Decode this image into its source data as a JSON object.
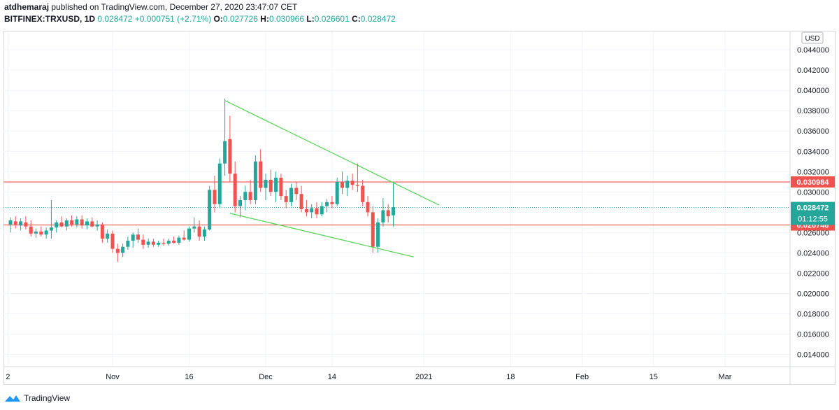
{
  "header": {
    "user": "atdhemaraj",
    "published_text": "published on TradingView.com, December 27, 2020 23:47:07 CET",
    "symbol": "BITFINEX:TRXUSD, 1D",
    "price": "0.028472",
    "change": "+0.000751 (+2.71%)",
    "o_label": "O:",
    "o_value": "0.027726",
    "h_label": "H:",
    "h_value": "0.030966",
    "l_label": "L:",
    "l_value": "0.026601",
    "c_label": "C:",
    "c_value": "0.028472"
  },
  "footer": {
    "brand": "TradingView"
  },
  "chart_data": {
    "type": "candlestick",
    "symbol": "BITFINEX:TRXUSD",
    "interval": "1D",
    "currency": "USD",
    "ylim": [
      0.0128,
      0.0458
    ],
    "y_ticks": [
      "0.044000",
      "0.042000",
      "0.040000",
      "0.038000",
      "0.036000",
      "0.034000",
      "0.032000",
      "0.030000",
      "0.028000",
      "0.026000",
      "0.024000",
      "0.022000",
      "0.020000",
      "0.018000",
      "0.016000",
      "0.014000"
    ],
    "x_ticks": [
      {
        "i": -0.5,
        "label": "2"
      },
      {
        "i": 20,
        "label": "Nov"
      },
      {
        "i": 35,
        "label": "16"
      },
      {
        "i": 50,
        "label": "Dec"
      },
      {
        "i": 63,
        "label": "14"
      },
      {
        "i": 81,
        "label": "2021"
      },
      {
        "i": 98,
        "label": "18"
      },
      {
        "i": 112,
        "label": "Feb"
      },
      {
        "i": 126,
        "label": "15"
      },
      {
        "i": 140,
        "label": "Mar"
      }
    ],
    "candles": [
      {
        "o": 0.0268,
        "h": 0.0275,
        "l": 0.026,
        "c": 0.0272
      },
      {
        "o": 0.0271,
        "h": 0.0276,
        "l": 0.0264,
        "c": 0.0268
      },
      {
        "o": 0.0267,
        "h": 0.0274,
        "l": 0.0262,
        "c": 0.0271
      },
      {
        "o": 0.027,
        "h": 0.0276,
        "l": 0.0263,
        "c": 0.0266
      },
      {
        "o": 0.0266,
        "h": 0.0272,
        "l": 0.0256,
        "c": 0.0259
      },
      {
        "o": 0.0259,
        "h": 0.0264,
        "l": 0.0255,
        "c": 0.0261
      },
      {
        "o": 0.0261,
        "h": 0.0266,
        "l": 0.0256,
        "c": 0.0258
      },
      {
        "o": 0.0258,
        "h": 0.0265,
        "l": 0.0254,
        "c": 0.0262
      },
      {
        "o": 0.0262,
        "h": 0.0292,
        "l": 0.0254,
        "c": 0.0265
      },
      {
        "o": 0.0265,
        "h": 0.0272,
        "l": 0.026,
        "c": 0.027
      },
      {
        "o": 0.027,
        "h": 0.0276,
        "l": 0.0265,
        "c": 0.0266
      },
      {
        "o": 0.0266,
        "h": 0.0274,
        "l": 0.0262,
        "c": 0.0272
      },
      {
        "o": 0.0272,
        "h": 0.0277,
        "l": 0.0266,
        "c": 0.0268
      },
      {
        "o": 0.0268,
        "h": 0.0276,
        "l": 0.0265,
        "c": 0.0273
      },
      {
        "o": 0.0273,
        "h": 0.0277,
        "l": 0.0264,
        "c": 0.0267
      },
      {
        "o": 0.0267,
        "h": 0.0274,
        "l": 0.0263,
        "c": 0.0271
      },
      {
        "o": 0.0271,
        "h": 0.0275,
        "l": 0.0265,
        "c": 0.0266
      },
      {
        "o": 0.0266,
        "h": 0.0272,
        "l": 0.0262,
        "c": 0.0268
      },
      {
        "o": 0.0268,
        "h": 0.027,
        "l": 0.025,
        "c": 0.0254
      },
      {
        "o": 0.0254,
        "h": 0.0263,
        "l": 0.025,
        "c": 0.0259
      },
      {
        "o": 0.0259,
        "h": 0.0262,
        "l": 0.024,
        "c": 0.0244
      },
      {
        "o": 0.0244,
        "h": 0.0249,
        "l": 0.0231,
        "c": 0.024
      },
      {
        "o": 0.024,
        "h": 0.0249,
        "l": 0.0236,
        "c": 0.0246
      },
      {
        "o": 0.0246,
        "h": 0.0256,
        "l": 0.0243,
        "c": 0.0252
      },
      {
        "o": 0.0252,
        "h": 0.026,
        "l": 0.0245,
        "c": 0.0258
      },
      {
        "o": 0.0258,
        "h": 0.0264,
        "l": 0.025,
        "c": 0.0253
      },
      {
        "o": 0.0253,
        "h": 0.0258,
        "l": 0.0244,
        "c": 0.0248
      },
      {
        "o": 0.0248,
        "h": 0.0254,
        "l": 0.0245,
        "c": 0.0251
      },
      {
        "o": 0.0251,
        "h": 0.0254,
        "l": 0.0246,
        "c": 0.0248
      },
      {
        "o": 0.0248,
        "h": 0.0252,
        "l": 0.0246,
        "c": 0.025
      },
      {
        "o": 0.025,
        "h": 0.0254,
        "l": 0.0247,
        "c": 0.0249
      },
      {
        "o": 0.0249,
        "h": 0.0254,
        "l": 0.0247,
        "c": 0.0252
      },
      {
        "o": 0.0252,
        "h": 0.0256,
        "l": 0.0249,
        "c": 0.025
      },
      {
        "o": 0.025,
        "h": 0.0257,
        "l": 0.0248,
        "c": 0.0255
      },
      {
        "o": 0.0255,
        "h": 0.0262,
        "l": 0.0252,
        "c": 0.0253
      },
      {
        "o": 0.0253,
        "h": 0.0266,
        "l": 0.0251,
        "c": 0.0264
      },
      {
        "o": 0.0264,
        "h": 0.0275,
        "l": 0.026,
        "c": 0.0266
      },
      {
        "o": 0.0266,
        "h": 0.0272,
        "l": 0.0252,
        "c": 0.0256
      },
      {
        "o": 0.0256,
        "h": 0.0266,
        "l": 0.0252,
        "c": 0.0263
      },
      {
        "o": 0.0263,
        "h": 0.0306,
        "l": 0.0262,
        "c": 0.0302
      },
      {
        "o": 0.0302,
        "h": 0.0316,
        "l": 0.028,
        "c": 0.0288
      },
      {
        "o": 0.0288,
        "h": 0.0333,
        "l": 0.0284,
        "c": 0.0328
      },
      {
        "o": 0.0328,
        "h": 0.0392,
        "l": 0.0316,
        "c": 0.035
      },
      {
        "o": 0.0352,
        "h": 0.0375,
        "l": 0.031,
        "c": 0.0318
      },
      {
        "o": 0.0318,
        "h": 0.033,
        "l": 0.028,
        "c": 0.0286
      },
      {
        "o": 0.0286,
        "h": 0.0296,
        "l": 0.0275,
        "c": 0.0292
      },
      {
        "o": 0.0292,
        "h": 0.0306,
        "l": 0.0282,
        "c": 0.03
      },
      {
        "o": 0.03,
        "h": 0.0312,
        "l": 0.0288,
        "c": 0.0292
      },
      {
        "o": 0.0292,
        "h": 0.0336,
        "l": 0.0288,
        "c": 0.033
      },
      {
        "o": 0.033,
        "h": 0.0342,
        "l": 0.03,
        "c": 0.0304
      },
      {
        "o": 0.0304,
        "h": 0.0318,
        "l": 0.0292,
        "c": 0.0312
      },
      {
        "o": 0.0312,
        "h": 0.0322,
        "l": 0.0296,
        "c": 0.03
      },
      {
        "o": 0.03,
        "h": 0.032,
        "l": 0.029,
        "c": 0.0314
      },
      {
        "o": 0.0314,
        "h": 0.0318,
        "l": 0.0292,
        "c": 0.0296
      },
      {
        "o": 0.0296,
        "h": 0.0302,
        "l": 0.0284,
        "c": 0.029
      },
      {
        "o": 0.029,
        "h": 0.0308,
        "l": 0.0286,
        "c": 0.0304
      },
      {
        "o": 0.0304,
        "h": 0.031,
        "l": 0.0292,
        "c": 0.0298
      },
      {
        "o": 0.0298,
        "h": 0.0306,
        "l": 0.028,
        "c": 0.0283
      },
      {
        "o": 0.0283,
        "h": 0.0292,
        "l": 0.0276,
        "c": 0.028
      },
      {
        "o": 0.028,
        "h": 0.0288,
        "l": 0.0274,
        "c": 0.0284
      },
      {
        "o": 0.0284,
        "h": 0.029,
        "l": 0.0274,
        "c": 0.0278
      },
      {
        "o": 0.0278,
        "h": 0.029,
        "l": 0.0276,
        "c": 0.0286
      },
      {
        "o": 0.0286,
        "h": 0.0293,
        "l": 0.028,
        "c": 0.029
      },
      {
        "o": 0.029,
        "h": 0.0296,
        "l": 0.0284,
        "c": 0.0288
      },
      {
        "o": 0.0288,
        "h": 0.0314,
        "l": 0.0286,
        "c": 0.031
      },
      {
        "o": 0.031,
        "h": 0.032,
        "l": 0.0298,
        "c": 0.0304
      },
      {
        "o": 0.0304,
        "h": 0.0316,
        "l": 0.0296,
        "c": 0.0311
      },
      {
        "o": 0.0311,
        "h": 0.0318,
        "l": 0.0302,
        "c": 0.0307
      },
      {
        "o": 0.0307,
        "h": 0.0328,
        "l": 0.03,
        "c": 0.0306
      },
      {
        "o": 0.0306,
        "h": 0.0312,
        "l": 0.0286,
        "c": 0.029
      },
      {
        "o": 0.029,
        "h": 0.0296,
        "l": 0.0276,
        "c": 0.028
      },
      {
        "o": 0.028,
        "h": 0.0286,
        "l": 0.024,
        "c": 0.0246
      },
      {
        "o": 0.0246,
        "h": 0.0274,
        "l": 0.024,
        "c": 0.027
      },
      {
        "o": 0.027,
        "h": 0.0294,
        "l": 0.0266,
        "c": 0.0282
      },
      {
        "o": 0.0282,
        "h": 0.0288,
        "l": 0.027,
        "c": 0.0276
      },
      {
        "o": 0.0277,
        "h": 0.031,
        "l": 0.0266,
        "c": 0.0285
      }
    ],
    "levels": [
      {
        "value": 0.030984,
        "label": "0.030984",
        "color": "#ef5350",
        "kind": "resistance"
      },
      {
        "value": 0.026746,
        "label": "0.026746",
        "color": "#ef5350",
        "kind": "support"
      }
    ],
    "current": {
      "value": 0.028472,
      "label": "0.028472",
      "countdown": "01:12:55",
      "color": "#26a69a"
    },
    "trendlines": [
      {
        "from": [
          42,
          0.039
        ],
        "to": [
          84,
          0.0287
        ],
        "color": "#5ad45a"
      },
      {
        "from": [
          43,
          0.0279
        ],
        "to": [
          79,
          0.0236
        ],
        "color": "#5ad45a"
      }
    ],
    "colors": {
      "up": "#26a69a",
      "down": "#ef5350",
      "grid": "#f0f3fa",
      "axis_text": "#131722"
    }
  }
}
